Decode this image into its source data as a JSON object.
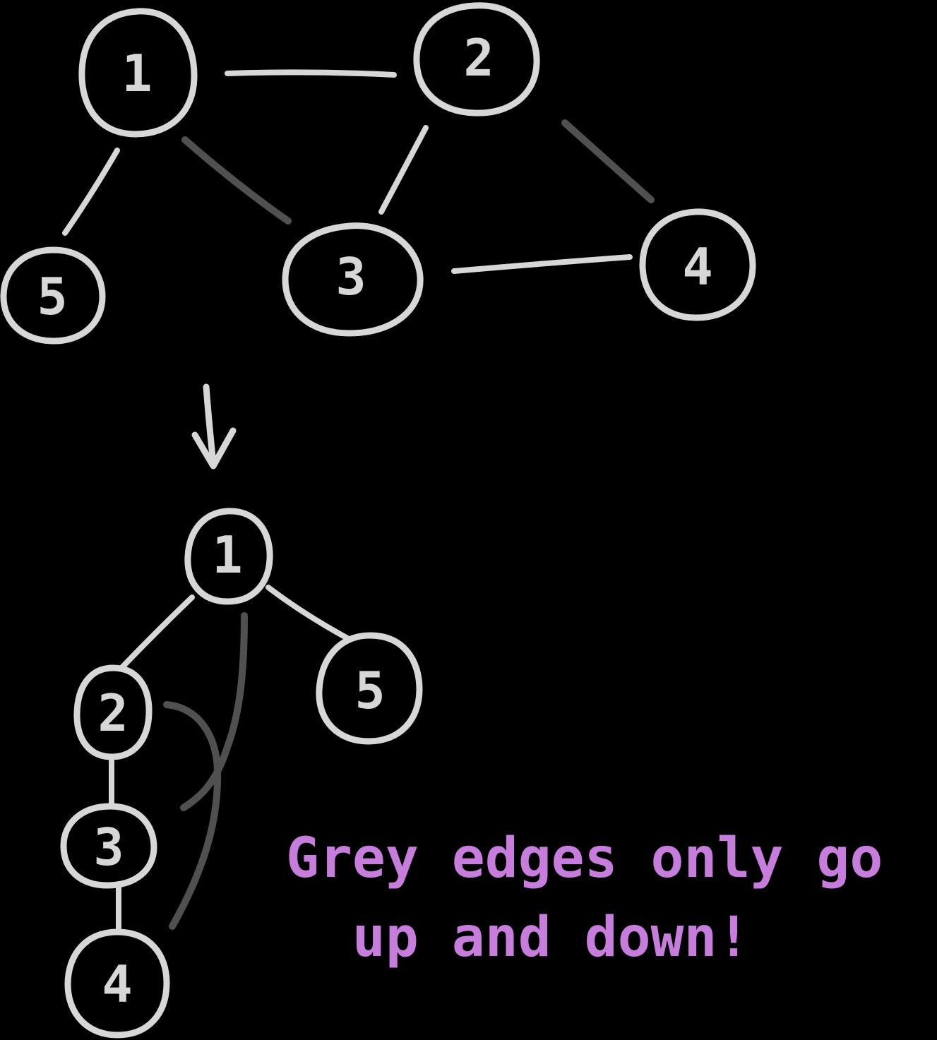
{
  "colors": {
    "background": "#000000",
    "node": "#d7d7d7",
    "tree_edge": "#d7d7d7",
    "back_edge": "#505050",
    "caption": "#c77ddb"
  },
  "graph": {
    "nodes": [
      {
        "id": "n1",
        "label": "1"
      },
      {
        "id": "n2",
        "label": "2"
      },
      {
        "id": "n3",
        "label": "3"
      },
      {
        "id": "n4",
        "label": "4"
      },
      {
        "id": "n5",
        "label": "5"
      }
    ],
    "edges": [
      {
        "from": "n1",
        "to": "n2",
        "kind": "tree"
      },
      {
        "from": "n1",
        "to": "n5",
        "kind": "tree"
      },
      {
        "from": "n1",
        "to": "n3",
        "kind": "back"
      },
      {
        "from": "n2",
        "to": "n3",
        "kind": "tree"
      },
      {
        "from": "n2",
        "to": "n4",
        "kind": "back"
      },
      {
        "from": "n3",
        "to": "n4",
        "kind": "tree"
      }
    ]
  },
  "tree": {
    "nodes": [
      {
        "id": "t1",
        "label": "1"
      },
      {
        "id": "t2",
        "label": "2"
      },
      {
        "id": "t3",
        "label": "3"
      },
      {
        "id": "t4",
        "label": "4"
      },
      {
        "id": "t5",
        "label": "5"
      }
    ],
    "tree_edges": [
      {
        "from": "t1",
        "to": "t2"
      },
      {
        "from": "t1",
        "to": "t5"
      },
      {
        "from": "t2",
        "to": "t3"
      },
      {
        "from": "t3",
        "to": "t4"
      }
    ],
    "back_edges": [
      {
        "from": "t3",
        "to": "t1"
      },
      {
        "from": "t4",
        "to": "t2"
      }
    ]
  },
  "caption": {
    "text": "Grey edges only go\n  up and down!"
  }
}
